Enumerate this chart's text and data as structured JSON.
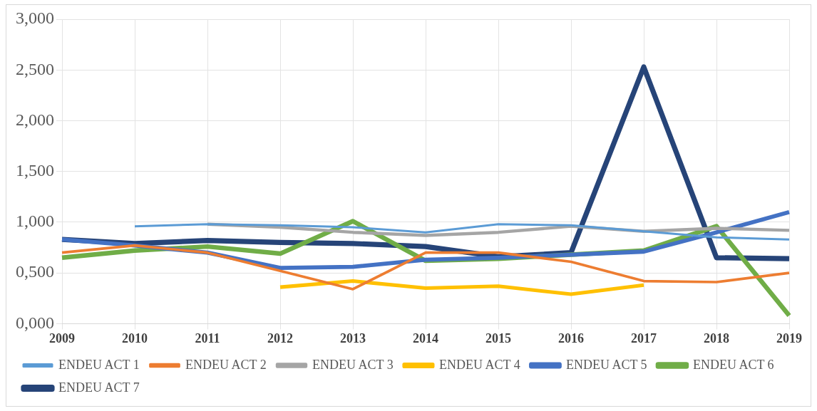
{
  "chart_data": {
    "type": "line",
    "categories": [
      "2009",
      "2010",
      "2011",
      "2012",
      "2013",
      "2014",
      "2015",
      "2016",
      "2017",
      "2018",
      "2019"
    ],
    "ylim": [
      0,
      3
    ],
    "yticks": [
      {
        "value": 0,
        "label": "0,000"
      },
      {
        "value": 0.5,
        "label": "0,500"
      },
      {
        "value": 1,
        "label": "1,000"
      },
      {
        "value": 1.5,
        "label": "1,500"
      },
      {
        "value": 2,
        "label": "2,000"
      },
      {
        "value": 2.5,
        "label": "2,500"
      },
      {
        "value": 3,
        "label": "3,000"
      }
    ],
    "grid": true,
    "legend": "bottom",
    "marker": "none",
    "line_style": "solid",
    "series": [
      {
        "name": "ENDEU ACT 1",
        "color": "#5b9bd5",
        "values": [
          null,
          0.96,
          0.98,
          0.97,
          0.95,
          0.9,
          0.98,
          0.97,
          0.91,
          0.85,
          0.83
        ]
      },
      {
        "name": "ENDEU ACT 2",
        "color": "#ed7d31",
        "values": [
          0.7,
          0.77,
          0.7,
          0.52,
          0.34,
          0.7,
          0.7,
          0.61,
          0.42,
          0.41,
          0.5
        ]
      },
      {
        "name": "ENDEU ACT 3",
        "color": "#a5a5a5",
        "values": [
          null,
          null,
          0.98,
          0.95,
          0.9,
          0.87,
          0.9,
          0.96,
          0.91,
          0.94,
          0.92
        ]
      },
      {
        "name": "ENDEU ACT 4",
        "color": "#ffc000",
        "values": [
          null,
          null,
          null,
          0.36,
          0.42,
          0.35,
          0.37,
          0.29,
          0.38,
          null,
          null
        ]
      },
      {
        "name": "ENDEU ACT 5",
        "color": "#4472c4",
        "values": [
          0.83,
          0.77,
          0.7,
          0.55,
          0.56,
          0.63,
          0.65,
          0.68,
          0.71,
          0.9,
          1.1
        ]
      },
      {
        "name": "ENDEU ACT 6",
        "color": "#70ad47",
        "values": [
          0.65,
          0.72,
          0.76,
          0.69,
          1.01,
          0.62,
          0.64,
          0.68,
          0.72,
          0.96,
          0.08
        ]
      },
      {
        "name": "ENDEU ACT 7",
        "color": "#264478",
        "values": [
          0.83,
          0.79,
          0.82,
          0.8,
          0.79,
          0.76,
          0.66,
          0.7,
          2.53,
          0.65,
          0.64
        ]
      }
    ]
  }
}
